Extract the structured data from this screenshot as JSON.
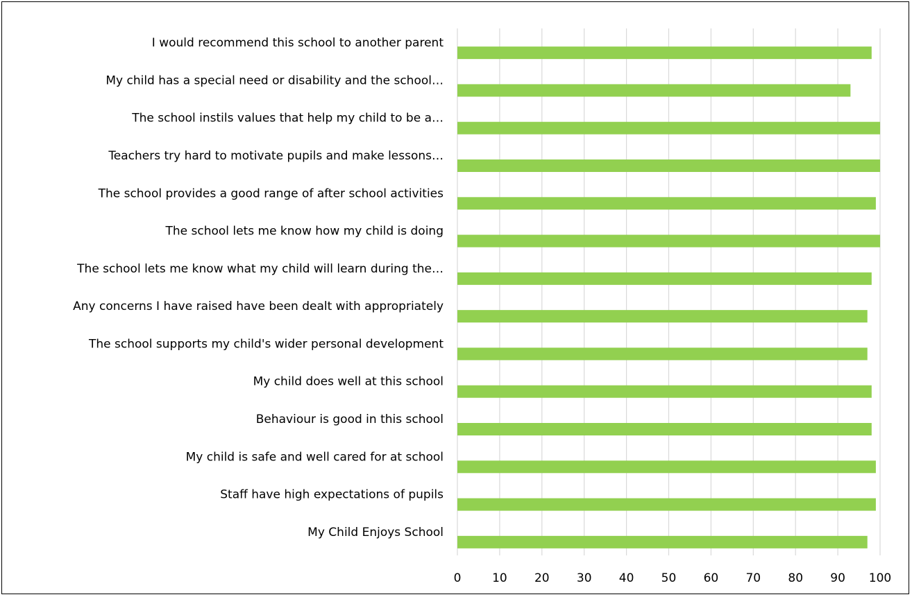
{
  "chart_data": {
    "type": "bar",
    "orientation": "horizontal",
    "categories": [
      "I would recommend this school to another parent",
      "My child has a special need or disability and the school…",
      "The school instils values that help my child to be a…",
      "Teachers try hard to motivate pupils and make lessons…",
      "The school provides a good range of after school activities",
      "The school lets me know how my child is doing",
      "The school lets me know what my child will learn during the…",
      "Any concerns I have raised have been dealt with appropriately",
      "The school supports my child's wider personal development",
      "My child does well at this school",
      "Behaviour is good in this school",
      "My child is safe and well cared for at school",
      "Staff have high expectations of pupils",
      "My Child Enjoys School"
    ],
    "values": [
      98,
      93,
      100,
      100,
      99,
      100,
      98,
      97,
      97,
      98,
      98,
      99,
      99,
      97
    ],
    "xlim": [
      0,
      100
    ],
    "x_ticks": [
      "0",
      "10",
      "20",
      "30",
      "40",
      "50",
      "60",
      "70",
      "80",
      "90",
      "100"
    ],
    "grid": true,
    "legend": "none",
    "bar_color": "#92d050",
    "grid_color": "#d9d9d9"
  }
}
